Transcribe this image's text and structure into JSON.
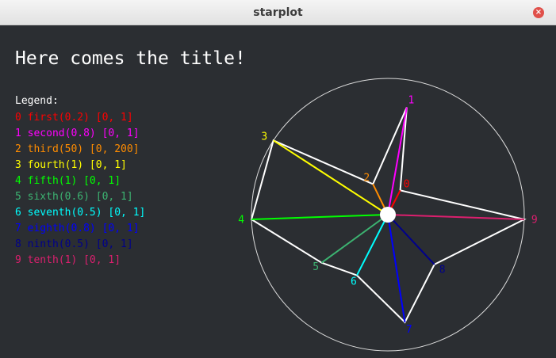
{
  "window": {
    "title": "starplot",
    "close_glyph": "×"
  },
  "chart_data": {
    "type": "radar",
    "title": "Here comes the title!",
    "legend_title": "Legend:",
    "axes": [
      {
        "index": "0",
        "name": "first",
        "value": 0.2,
        "range": [
          0,
          1
        ],
        "color": "#ff0000",
        "entry": "0 first(0.2) [0, 1]"
      },
      {
        "index": "1",
        "name": "second",
        "value": 0.8,
        "range": [
          0,
          1
        ],
        "color": "#ff00ff",
        "entry": "1 second(0.8) [0, 1]"
      },
      {
        "index": "2",
        "name": "third",
        "value": 50,
        "range": [
          0,
          200
        ],
        "color": "#ff8c00",
        "entry": "2 third(50) [0, 200]"
      },
      {
        "index": "3",
        "name": "fourth",
        "value": 1,
        "range": [
          0,
          1
        ],
        "color": "#ffff00",
        "entry": "3 fourth(1) [0, 1]"
      },
      {
        "index": "4",
        "name": "fifth",
        "value": 1,
        "range": [
          0,
          1
        ],
        "color": "#00ff00",
        "entry": "4 fifth(1) [0, 1]"
      },
      {
        "index": "5",
        "name": "sixth",
        "value": 0.6,
        "range": [
          0,
          1
        ],
        "color": "#3cb371",
        "entry": "5 sixth(0.6) [0, 1]"
      },
      {
        "index": "6",
        "name": "seventh",
        "value": 0.5,
        "range": [
          0,
          1
        ],
        "color": "#00ffff",
        "entry": "6 seventh(0.5) [0, 1]"
      },
      {
        "index": "7",
        "name": "eighth",
        "value": 0.8,
        "range": [
          0,
          1
        ],
        "color": "#0000ff",
        "entry": "7 eighth(0.8) [0, 1]"
      },
      {
        "index": "8",
        "name": "ninth",
        "value": 0.5,
        "range": [
          0,
          1
        ],
        "color": "#00008b",
        "entry": "8 ninth(0.5) [0, 1]"
      },
      {
        "index": "9",
        "name": "tenth",
        "value": 1,
        "range": [
          0,
          1
        ],
        "color": "#dc1f6e",
        "entry": "9 tenth(1) [0, 1]"
      }
    ]
  }
}
